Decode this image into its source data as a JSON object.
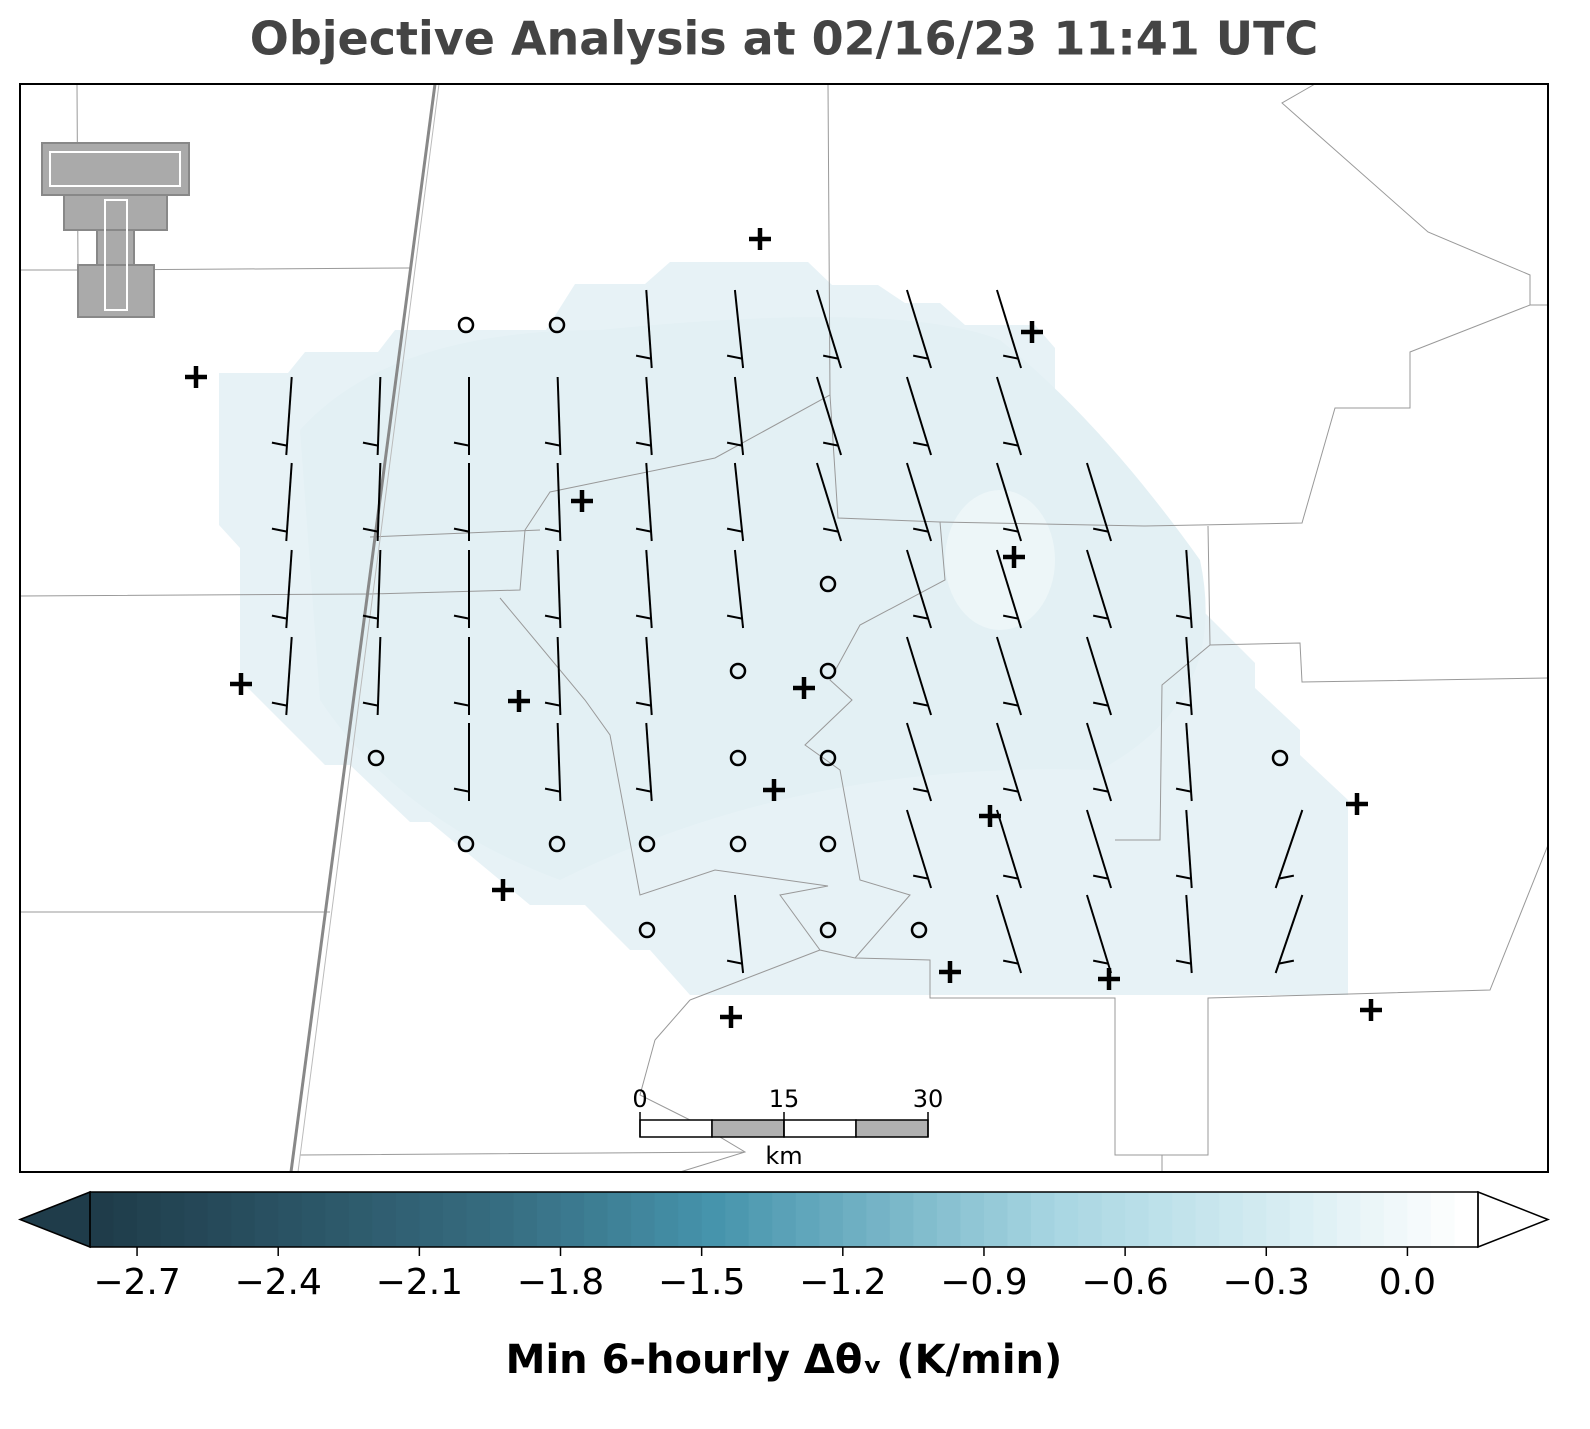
{
  "chart_data": {
    "type": "colormap",
    "title": "Objective Analysis at 02/16/23 11:41 UTC",
    "colorbar_label": "Min 6-hourly Δθᵥ (K/min)",
    "clim": [
      -2.8,
      0.15
    ],
    "colorbar_ticks": [
      {
        "value": -2.7,
        "label": "−2.7"
      },
      {
        "value": -2.4,
        "label": "−2.4"
      },
      {
        "value": -2.1,
        "label": "−2.1"
      },
      {
        "value": -1.8,
        "label": "−1.8"
      },
      {
        "value": -1.5,
        "label": "−1.5"
      },
      {
        "value": -1.2,
        "label": "−1.2"
      },
      {
        "value": -0.9,
        "label": "−0.9"
      },
      {
        "value": -0.6,
        "label": "−0.6"
      },
      {
        "value": -0.3,
        "label": "−0.3"
      },
      {
        "value": 0.0,
        "label": "0.0"
      }
    ],
    "scale_bar": {
      "ticks": [
        0,
        15,
        30
      ],
      "unit": "km"
    }
  }
}
